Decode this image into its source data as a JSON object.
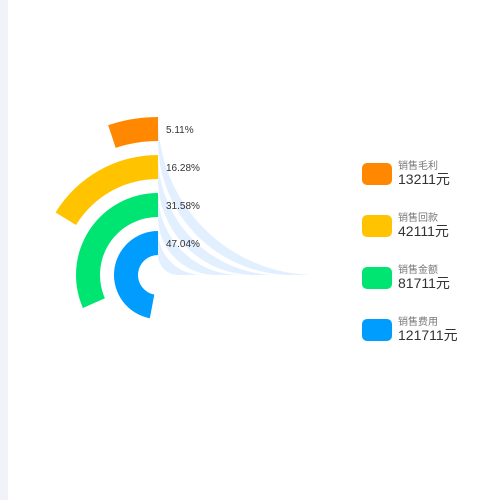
{
  "chart_data": {
    "type": "radial-bar",
    "series": [
      {
        "name": "销售毛利",
        "value": 13211,
        "value_label": "13211元",
        "percent": 5.11,
        "percent_label": "5.11%",
        "color": "#ff8800"
      },
      {
        "name": "销售回款",
        "value": 42111,
        "value_label": "42111元",
        "percent": 16.28,
        "percent_label": "16.28%",
        "color": "#ffc300"
      },
      {
        "name": "销售金额",
        "value": 81711,
        "value_label": "81711元",
        "percent": 31.58,
        "percent_label": "31.58%",
        "color": "#00e472"
      },
      {
        "name": "销售费用",
        "value": 121711,
        "value_label": "121711元",
        "percent": 47.04,
        "percent_label": "47.04%",
        "color": "#009dff"
      }
    ],
    "track_color": "#e2efff",
    "legend_position": "right"
  }
}
